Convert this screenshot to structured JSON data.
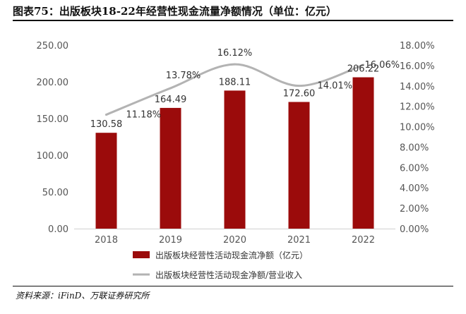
{
  "title": "图表75：出版板块18-22年经营性现金流量净额情况（单位：亿元）",
  "source": "资料来源：iFinD、万联证券研究所",
  "colors": {
    "bar": "#9b0b0b",
    "line": "#b3b3b3",
    "text": "#333333"
  },
  "chart_data": {
    "type": "bar",
    "categories": [
      "2018",
      "2019",
      "2020",
      "2021",
      "2022"
    ],
    "series": [
      {
        "name": "出版板块经营性活动现金流净额（亿元）",
        "kind": "bar",
        "axis": "left",
        "values": [
          130.58,
          164.49,
          188.11,
          172.6,
          206.22
        ],
        "labels": [
          "130.58",
          "164.49",
          "188.11",
          "172.60",
          "206.22"
        ]
      },
      {
        "name": "出版板块经营性活动现金净额/营业收入",
        "kind": "line",
        "axis": "right",
        "values": [
          11.18,
          13.78,
          16.12,
          14.01,
          16.06
        ],
        "labels": [
          "11.18%",
          "13.78%",
          "16.12%",
          "14.01%",
          "16.06%"
        ]
      }
    ],
    "left_axis": {
      "min": 0,
      "max": 250,
      "ticks": [
        0,
        50,
        100,
        150,
        200,
        250
      ],
      "tick_labels": [
        "0.00",
        "50.00",
        "100.00",
        "150.00",
        "200.00",
        "250.00"
      ]
    },
    "right_axis": {
      "min": 0,
      "max": 18,
      "ticks": [
        0,
        2,
        4,
        6,
        8,
        10,
        12,
        14,
        16,
        18
      ],
      "tick_labels": [
        "0.00%",
        "2.00%",
        "4.00%",
        "6.00%",
        "8.00%",
        "10.00%",
        "12.00%",
        "14.00%",
        "16.00%",
        "18.00%"
      ]
    },
    "grid": false,
    "legend_position": "bottom"
  }
}
